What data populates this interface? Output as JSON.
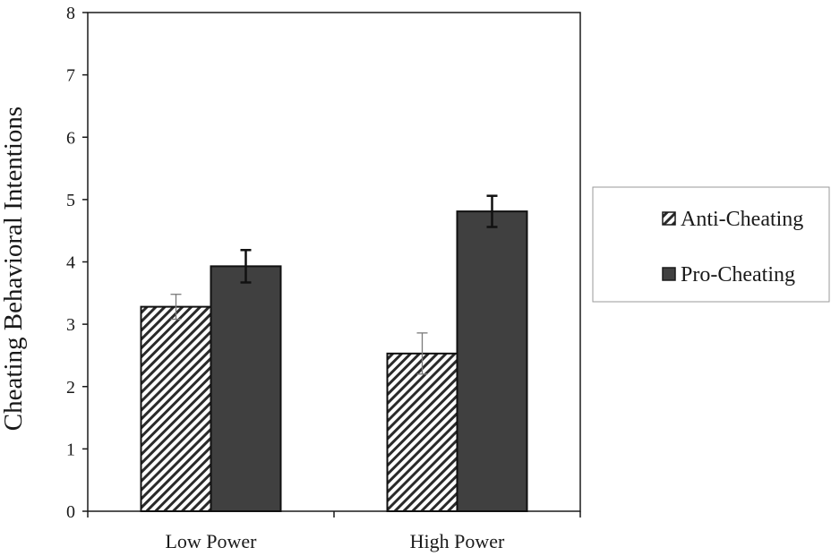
{
  "chart_data": {
    "type": "bar",
    "ylabel": "Cheating Behavioral Intentions",
    "xlabel": "",
    "categories": [
      "Low Power",
      "High Power"
    ],
    "ylim": [
      0,
      8
    ],
    "yticks": [
      "0",
      "1",
      "2",
      "3",
      "4",
      "5",
      "6",
      "7",
      "8"
    ],
    "grid": false,
    "legend_position": "right",
    "series": [
      {
        "name": "Anti-Cheating",
        "pattern": "diagonal-hatch",
        "color": "#ffffff",
        "values": [
          3.28,
          2.53
        ],
        "errors": [
          0.2,
          0.33
        ]
      },
      {
        "name": "Pro-Cheating",
        "pattern": "solid",
        "color": "#404040",
        "values": [
          3.93,
          4.81
        ],
        "errors": [
          0.26,
          0.25
        ]
      }
    ]
  }
}
